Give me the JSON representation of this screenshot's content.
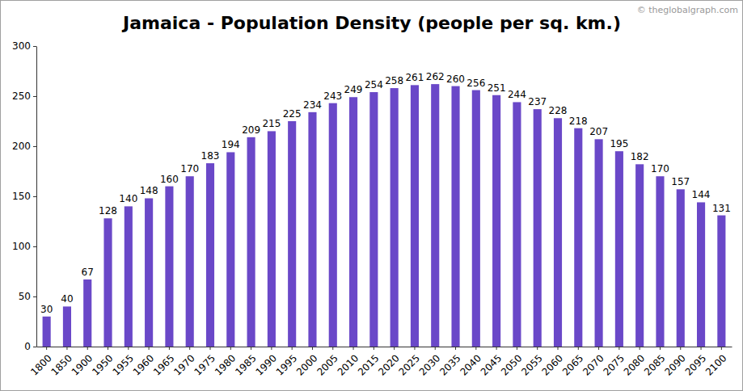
{
  "chart_data": {
    "type": "bar",
    "title": "Jamaica - Population Density (people per sq. km.)",
    "annotations": [
      "© theglobalgraph.com"
    ],
    "categories": [
      "1800",
      "1850",
      "1900",
      "1950",
      "1955",
      "1960",
      "1965",
      "1970",
      "1975",
      "1980",
      "1985",
      "1990",
      "1995",
      "2000",
      "2005",
      "2010",
      "2015",
      "2020",
      "2025",
      "2030",
      "2035",
      "2040",
      "2045",
      "2050",
      "2055",
      "2060",
      "2065",
      "2070",
      "2075",
      "2080",
      "2085",
      "2090",
      "2095",
      "2100"
    ],
    "values": [
      30,
      40,
      67,
      128,
      140,
      148,
      160,
      170,
      183,
      194,
      209,
      215,
      225,
      234,
      243,
      249,
      254,
      258,
      261,
      262,
      260,
      256,
      251,
      244,
      237,
      228,
      218,
      207,
      195,
      182,
      170,
      157,
      144,
      131
    ],
    "color": "#6a48c8",
    "ylim": [
      0,
      300
    ],
    "yticks": [
      0,
      50,
      100,
      150,
      200,
      250,
      300
    ],
    "grid": false,
    "data_labels": true
  }
}
